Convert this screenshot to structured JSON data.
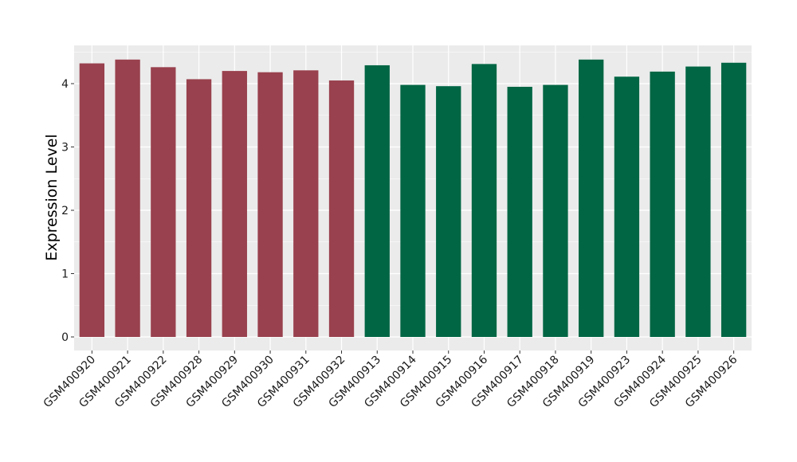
{
  "chart_data": {
    "type": "bar",
    "title": "",
    "xlabel": "",
    "ylabel": "Expression Level",
    "ylim": [
      0,
      4.5
    ],
    "yticks": [
      0,
      1,
      2,
      3,
      4
    ],
    "grid": true,
    "legend": "none",
    "categories": [
      "GSM400920",
      "GSM400921",
      "GSM400922",
      "GSM400928",
      "GSM400929",
      "GSM400930",
      "GSM400931",
      "GSM400932",
      "GSM400913",
      "GSM400914",
      "GSM400915",
      "GSM400916",
      "GSM400917",
      "GSM400918",
      "GSM400919",
      "GSM400923",
      "GSM400924",
      "GSM400925",
      "GSM400926"
    ],
    "values": [
      4.32,
      4.38,
      4.26,
      4.07,
      4.2,
      4.18,
      4.21,
      4.05,
      4.29,
      3.98,
      3.96,
      4.31,
      3.95,
      3.98,
      4.38,
      4.11,
      4.19,
      4.27,
      4.33
    ],
    "bar_colors": [
      "#99414e",
      "#99414e",
      "#99414e",
      "#99414e",
      "#99414e",
      "#99414e",
      "#99414e",
      "#99414e",
      "#006644",
      "#006644",
      "#006644",
      "#006644",
      "#006644",
      "#006644",
      "#006644",
      "#006644",
      "#006644",
      "#006644",
      "#006644"
    ],
    "panel_background": "#ebebeb",
    "grid_color": "#ffffff"
  }
}
